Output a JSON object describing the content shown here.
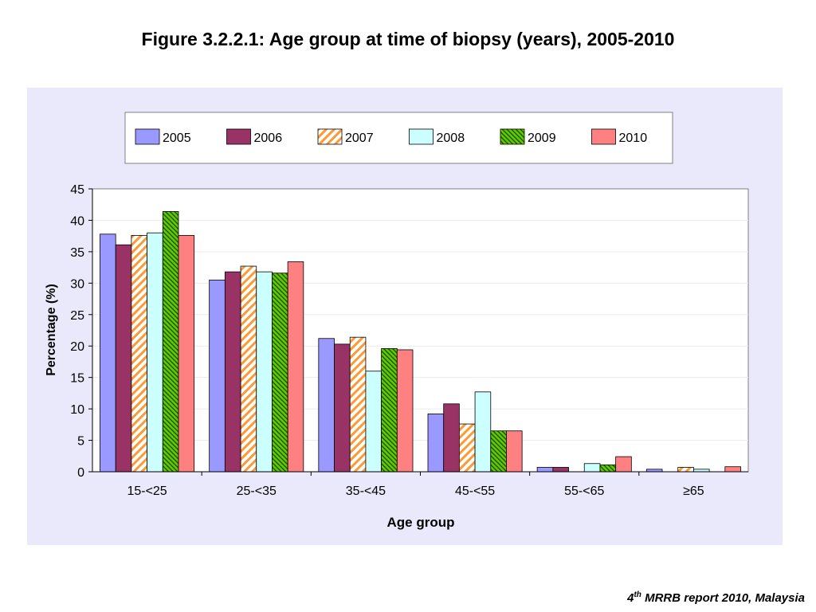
{
  "page": {
    "title": "Figure 3.2.2.1: Age group at time of biopsy (years), 2005-2010",
    "footer": {
      "sup_prefix": "4",
      "sup": "th",
      "text": " MRRB report 2010, Malaysia"
    }
  },
  "chart_data": {
    "type": "bar",
    "xlabel": "Age group",
    "ylabel": "Percentage (%)",
    "ylim": [
      0,
      45
    ],
    "yticks": [
      0,
      5,
      10,
      15,
      20,
      25,
      30,
      35,
      40,
      45
    ],
    "grid": true,
    "legend_position": "top",
    "categories": [
      "15-<25",
      "25-<35",
      "35-<45",
      "45-<55",
      "55-<65",
      "≥65"
    ],
    "series": [
      {
        "name": "2005",
        "color": "#9999ff",
        "pattern": "solid",
        "values": [
          37.8,
          30.5,
          21.2,
          9.2,
          0.7,
          0.4
        ]
      },
      {
        "name": "2006",
        "color": "#993366",
        "pattern": "solid",
        "values": [
          36.1,
          31.8,
          20.3,
          10.8,
          0.7,
          0.0
        ]
      },
      {
        "name": "2007",
        "color": "#ff9933",
        "pattern": "diagonal-stripe",
        "values": [
          37.6,
          32.7,
          21.4,
          7.6,
          0.0,
          0.7
        ]
      },
      {
        "name": "2008",
        "color": "#ccffff",
        "pattern": "solid",
        "values": [
          38.0,
          31.8,
          16.0,
          12.7,
          1.3,
          0.4
        ]
      },
      {
        "name": "2009",
        "color": "#66cc00",
        "pattern": "diagonal-hatch",
        "values": [
          41.4,
          31.6,
          19.6,
          6.5,
          1.1,
          0.0
        ]
      },
      {
        "name": "2010",
        "color": "#ff8080",
        "pattern": "solid",
        "values": [
          37.6,
          33.4,
          19.4,
          6.5,
          2.4,
          0.8
        ]
      }
    ]
  }
}
